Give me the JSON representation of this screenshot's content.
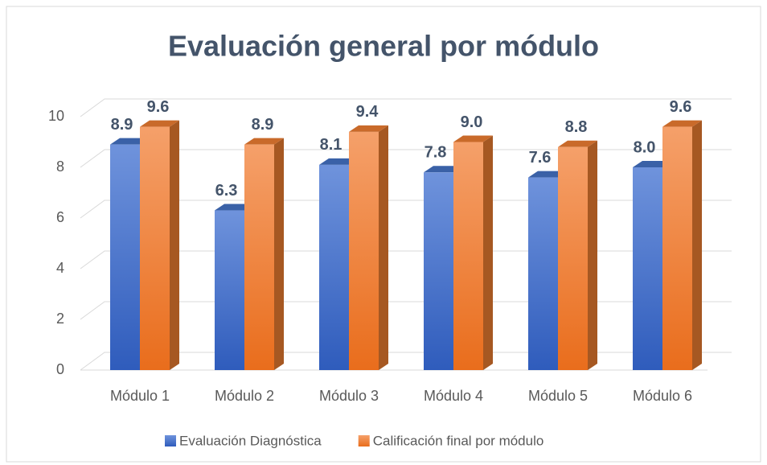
{
  "chart_data": {
    "type": "bar3d",
    "title": "Evaluación general por módulo",
    "categories": [
      "Módulo 1",
      "Módulo 2",
      "Módulo 3",
      "Módulo 4",
      "Módulo 5",
      "Módulo 6"
    ],
    "series": [
      {
        "name": "Evaluación Diagnóstica",
        "color": "#4472c4",
        "values": [
          8.9,
          6.3,
          8.1,
          7.8,
          7.6,
          8.0
        ],
        "value_labels": [
          "8.9",
          "6.3",
          "8.1",
          "7.8",
          "7.6",
          "8.0"
        ]
      },
      {
        "name": "Calificación final por módulo",
        "color": "#ed7d31",
        "values": [
          9.6,
          8.9,
          9.4,
          9.0,
          8.8,
          9.6
        ],
        "value_labels": [
          "9.6",
          "8.9",
          "9.4",
          "9.0",
          "8.8",
          "9.6"
        ]
      }
    ],
    "ylim": [
      0,
      10
    ],
    "yticks": [
      0,
      2,
      4,
      6,
      8,
      10
    ],
    "grid": true,
    "legend": "bottom"
  }
}
